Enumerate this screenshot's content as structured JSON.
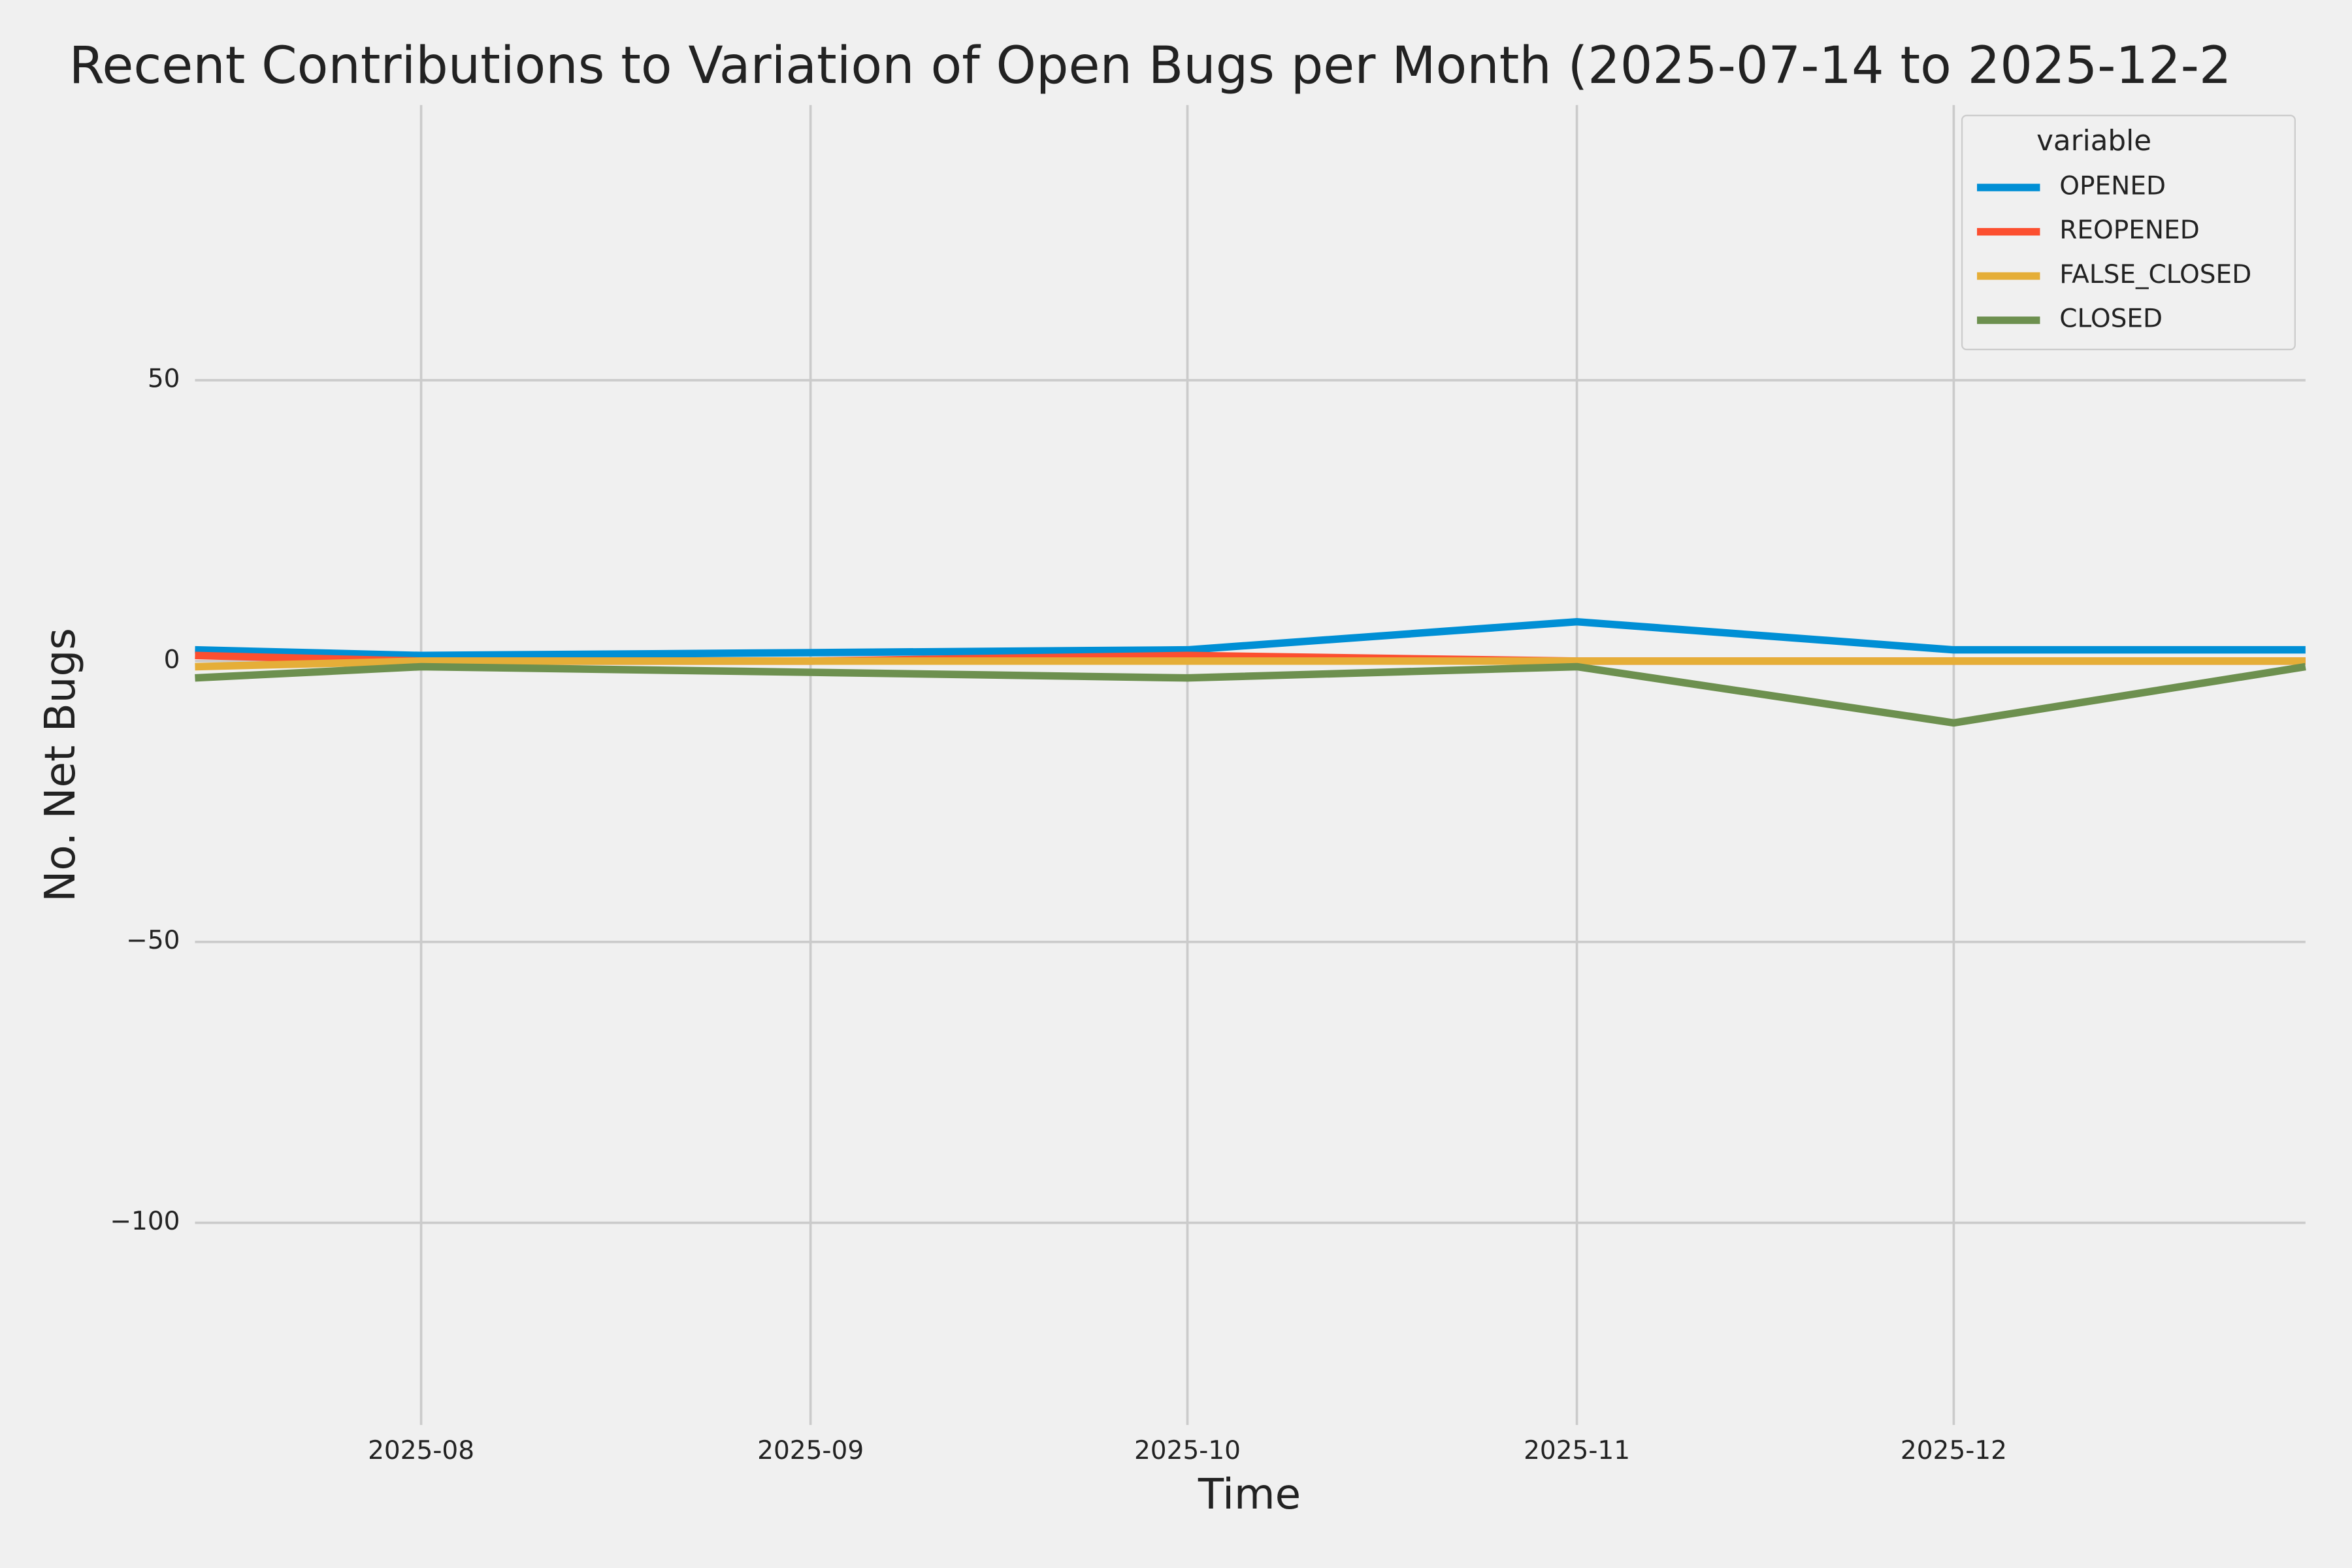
{
  "chart_data": {
    "type": "line",
    "title": "Recent Contributions to Variation of Open Bugs per Month (2025-07-14 to 2025-12-2",
    "x_label": "Time",
    "y_label": "No. Net Bugs",
    "x": [
      "2025-07-14",
      "2025-08-01",
      "2025-09-01",
      "2025-10-01",
      "2025-11-01",
      "2025-12-01",
      "2025-12-29"
    ],
    "xlim": [
      "2025-07-14",
      "2025-12-29"
    ],
    "xticks": [
      {
        "value": "2025-08-01",
        "label": "2025-08"
      },
      {
        "value": "2025-09-01",
        "label": "2025-09"
      },
      {
        "value": "2025-10-01",
        "label": "2025-10"
      },
      {
        "value": "2025-11-01",
        "label": "2025-11"
      },
      {
        "value": "2025-12-01",
        "label": "2025-12"
      }
    ],
    "ylim": [
      -136,
      99
    ],
    "yticks": [
      {
        "value": -100,
        "label": "−100"
      },
      {
        "value": -50,
        "label": "−50"
      },
      0,
      50
    ],
    "grid": true,
    "legend_title": "variable",
    "legend": "upper right",
    "series": [
      {
        "name": "OPENED",
        "color": "#008fd5",
        "values": [
          2,
          1,
          1.5,
          2,
          7,
          2,
          2
        ]
      },
      {
        "name": "REOPENED",
        "color": "#fc4f30",
        "values": [
          1,
          0,
          0,
          1,
          0,
          0,
          0
        ]
      },
      {
        "name": "FALSE_CLOSED",
        "color": "#e5ae38",
        "values": [
          -1,
          0,
          0,
          0,
          0,
          0,
          0
        ]
      },
      {
        "name": "CLOSED",
        "color": "#6d904f",
        "values": [
          -3,
          -1,
          -2,
          -3,
          -1,
          -11,
          -1
        ]
      }
    ]
  }
}
